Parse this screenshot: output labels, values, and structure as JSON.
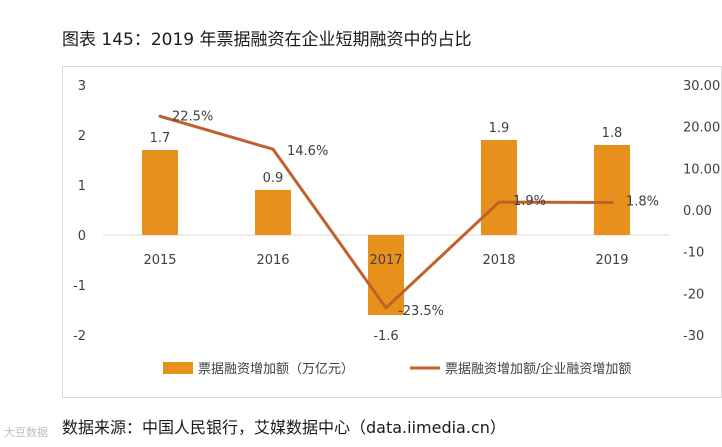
{
  "title": "图表 145：2019 年票据融资在企业短期融资中的占比",
  "source": "数据来源：中国人民银行，艾媒数据中心（data.iimedia.cn）",
  "watermark": "大豆数据",
  "chart_data": {
    "type": "bar+line",
    "categories": [
      "2015",
      "2016",
      "2017",
      "2018",
      "2019"
    ],
    "series": [
      {
        "name": "票据融资增加额（万亿元）",
        "type": "bar",
        "axis": "left",
        "values": [
          1.7,
          0.9,
          -1.6,
          1.9,
          1.8
        ],
        "labels": [
          "1.7",
          "0.9",
          "-1.6",
          "1.9",
          "1.8"
        ],
        "color": "#E8901C"
      },
      {
        "name": "票据融资增加额/企业融资增加额",
        "type": "line",
        "axis": "right",
        "values": [
          22.5,
          14.6,
          -23.5,
          1.9,
          1.8
        ],
        "labels": [
          "22.5%",
          "14.6%",
          "-23.5%",
          "1.9%",
          "1.8%"
        ],
        "color": "#C0612B"
      }
    ],
    "left_axis": {
      "min": -2,
      "max": 3,
      "ticks": [
        "-2",
        "-1",
        "0",
        "1",
        "2",
        "3"
      ]
    },
    "right_axis": {
      "min": -30,
      "max": 30,
      "ticks": [
        "-30",
        "-20",
        "-10",
        "0.00",
        "10.00",
        "20.00",
        "30.00"
      ]
    },
    "legend": [
      "票据融资增加额（万亿元）",
      "票据融资增加额/企业融资增加额"
    ]
  }
}
